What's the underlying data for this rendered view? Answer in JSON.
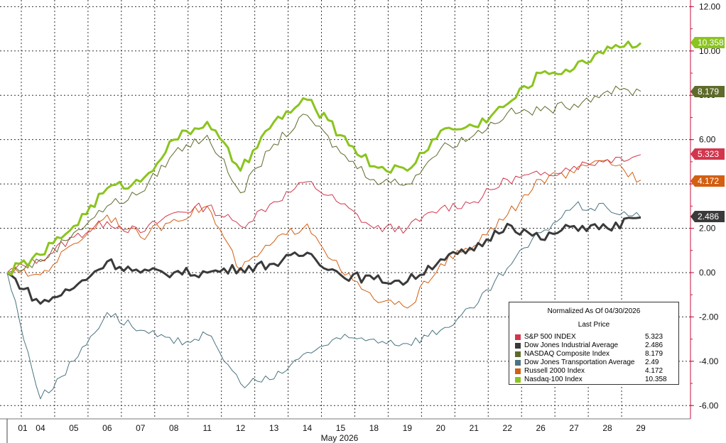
{
  "chart_data": {
    "type": "line",
    "xlabel": "May 2026",
    "x_ticks": [
      "01",
      "04",
      "05",
      "06",
      "07",
      "08",
      "11",
      "12",
      "13",
      "14",
      "15",
      "18",
      "19",
      "20",
      "21",
      "22",
      "26",
      "27",
      "28",
      "29"
    ],
    "y_ticks": [
      "12.00",
      "10.00",
      "8.00",
      "6.00",
      "4.00",
      "2.00",
      "0.00",
      "-2.00",
      "-4.00",
      "-6.00"
    ],
    "ylim": [
      -6.6,
      12.3
    ],
    "grid": true,
    "legend": {
      "position": "bottom-right",
      "title": "Normalized As Of 04/30/2026",
      "subtitle": "Last Price"
    },
    "series": [
      {
        "name": "S&P 500 INDEX",
        "color": "#d2364d",
        "last": "5.323",
        "values": [
          0,
          0.6,
          1.6,
          2.3,
          1.8,
          2.7,
          3.0,
          2.1,
          3.2,
          4.1,
          3.1,
          2.0,
          2.0,
          2.9,
          3.2,
          4.2,
          4.4,
          4.8,
          5.1,
          5.323
        ]
      },
      {
        "name": "Dow Jones Industrial Average",
        "color": "#3a3a3a",
        "last": "2.486",
        "values": [
          0,
          -1.4,
          -0.7,
          0.5,
          0.0,
          0.0,
          0.0,
          0.2,
          0.4,
          0.9,
          -0.1,
          -0.3,
          -0.4,
          0.6,
          1.0,
          2.2,
          1.5,
          2.1,
          2.0,
          2.486
        ]
      },
      {
        "name": "NASDAQ Composite Index",
        "color": "#5e6b2b",
        "last": "8.179",
        "values": [
          0,
          0.5,
          1.8,
          3.0,
          3.6,
          5.4,
          6.2,
          3.6,
          5.8,
          7.1,
          5.4,
          4.2,
          4.0,
          5.6,
          6.2,
          7.2,
          7.3,
          7.6,
          8.2,
          8.179
        ]
      },
      {
        "name": "Dow Jones Transportation Average",
        "color": "#4a7480",
        "last": "2.49",
        "values": [
          0,
          -5.7,
          -4.0,
          -1.8,
          -2.6,
          -3.2,
          -2.8,
          -5.0,
          -4.8,
          -3.6,
          -3.0,
          -3.0,
          -3.2,
          -2.6,
          -1.6,
          0.2,
          1.8,
          3.0,
          2.9,
          2.49
        ]
      },
      {
        "name": "Russell 2000 Index",
        "color": "#d35f12",
        "last": "4.172",
        "values": [
          0,
          -0.1,
          1.3,
          2.6,
          1.6,
          2.4,
          3.0,
          0.1,
          1.4,
          2.2,
          0.1,
          -1.2,
          -1.6,
          0.4,
          1.2,
          2.6,
          4.2,
          4.5,
          5.1,
          4.172
        ]
      },
      {
        "name": "Nasdaq-100 Index",
        "color": "#8ac41e",
        "last": "10.358",
        "values": [
          0,
          0.8,
          2.1,
          3.8,
          4.1,
          6.0,
          6.8,
          4.6,
          6.8,
          7.8,
          6.2,
          4.8,
          4.6,
          6.4,
          6.6,
          7.6,
          9.0,
          9.2,
          10.2,
          10.358
        ]
      }
    ]
  }
}
